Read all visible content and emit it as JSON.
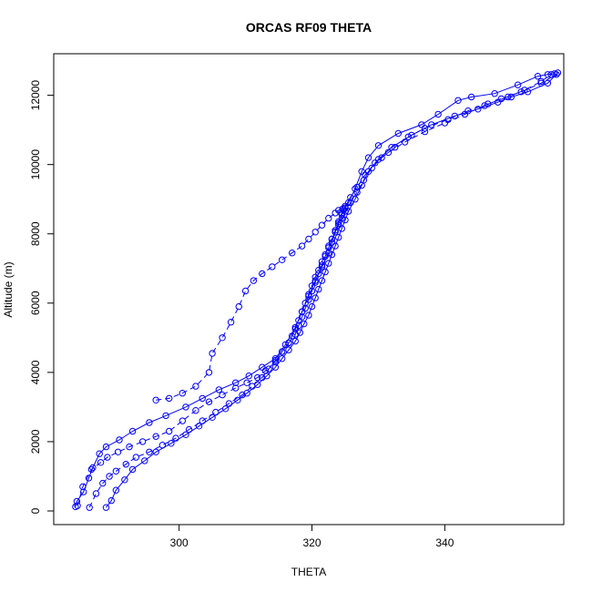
{
  "chart_data": {
    "type": "scatter",
    "title": "ORCAS RF09 THETA",
    "xlabel": "THETA",
    "ylabel": "Altitude (m)",
    "xlim": [
      284,
      357.5
    ],
    "ylim": [
      0,
      12700
    ],
    "x_ticks": [
      300,
      320,
      340,
      360
    ],
    "y_ticks": [
      0,
      2000,
      4000,
      6000,
      8000,
      10000,
      12000
    ],
    "grid": false,
    "legend": "none",
    "series_color": "#0000FF",
    "series": [
      {
        "line": "solid",
        "x": [
          284.4,
          284.6,
          285.6,
          286.4,
          287.0,
          288.0,
          289.0,
          291.0,
          293.0,
          295.5,
          298.0,
          301.0,
          303.5,
          306.0,
          308.5,
          310.5,
          312.5,
          314.5,
          316.0,
          317.5,
          318.5,
          319.5,
          320.5,
          321.5,
          322.5,
          323.0,
          323.5,
          324.0,
          324.5,
          324.8,
          325.0,
          325.5,
          326.5,
          327.5,
          328.5,
          330.0,
          333.0,
          336.5,
          339.0,
          342.0,
          344.0,
          347.5,
          351.0,
          354.0,
          355.5,
          356.5
        ],
        "y": [
          120,
          280,
          550,
          950,
          1250,
          1650,
          1850,
          2050,
          2300,
          2550,
          2750,
          3000,
          3250,
          3500,
          3700,
          3900,
          4150,
          4400,
          4800,
          5300,
          5750,
          6200,
          6650,
          7050,
          7450,
          7750,
          8050,
          8300,
          8550,
          8700,
          8750,
          8900,
          9300,
          9800,
          10200,
          10550,
          10900,
          11150,
          11450,
          11850,
          11950,
          12050,
          12300,
          12550,
          12600,
          12620
        ]
      },
      {
        "line": "dashed",
        "x": [
          284.7,
          285.5,
          286.8,
          288.2,
          289.2,
          290.8,
          292.5,
          294.5,
          296.5,
          298.5,
          300.5,
          302.5,
          304.5,
          306.5,
          308.5,
          310.2,
          311.8,
          313.0,
          314.5,
          315.5,
          316.5,
          317.0,
          317.5,
          318.0,
          318.5,
          319.0,
          319.5,
          320.0,
          320.5,
          321.0,
          321.5,
          322.0,
          322.5,
          323.0,
          323.5,
          324.0,
          324.5,
          325.0,
          325.8,
          326.8,
          327.8,
          329.0,
          330.5,
          332.5,
          334.5,
          337.0,
          340.5,
          343.5,
          346.5,
          349.5,
          352.0,
          354.5,
          356.0
        ],
        "y": [
          150,
          700,
          1200,
          1400,
          1550,
          1700,
          1850,
          2000,
          2150,
          2300,
          2600,
          2900,
          3150,
          3350,
          3550,
          3700,
          3850,
          4050,
          4300,
          4600,
          4850,
          5050,
          5250,
          5500,
          5750,
          6000,
          6250,
          6500,
          6750,
          6950,
          7200,
          7400,
          7650,
          7850,
          8050,
          8250,
          8450,
          8650,
          8900,
          9200,
          9550,
          9900,
          10200,
          10500,
          10800,
          11050,
          11300,
          11550,
          11750,
          11950,
          12150,
          12400,
          12600
        ]
      },
      {
        "line": "dashed",
        "x": [
          286.5,
          287.5,
          288.5,
          289.5,
          290.5,
          292.0,
          293.5,
          295.5,
          297.5,
          299.5,
          301.5,
          303.5,
          305.5,
          307.5,
          309.5,
          311.0,
          312.5,
          313.5,
          314.5,
          315.5,
          316.5,
          317.5,
          318.0,
          318.5,
          319.0,
          319.5,
          320.0,
          320.5,
          321.0,
          321.5,
          322.0,
          322.5,
          323.0,
          323.5,
          324.0,
          324.5,
          325.0,
          325.8,
          326.8,
          328.0,
          329.5,
          331.5,
          334.0,
          337.0,
          340.0,
          343.0,
          346.0,
          348.5,
          351.5,
          354.5,
          356.8
        ],
        "y": [
          100,
          500,
          800,
          1000,
          1150,
          1350,
          1550,
          1700,
          1900,
          2100,
          2350,
          2600,
          2850,
          3100,
          3350,
          3600,
          3850,
          4100,
          4350,
          4600,
          4850,
          5100,
          5350,
          5600,
          5850,
          6100,
          6350,
          6600,
          6850,
          7100,
          7350,
          7600,
          7850,
          8100,
          8350,
          8600,
          8800,
          9050,
          9350,
          9700,
          10050,
          10350,
          10650,
          10950,
          11200,
          11450,
          11700,
          11900,
          12100,
          12350,
          12600
        ]
      },
      {
        "line": "solid",
        "x": [
          289.0,
          289.8,
          290.5,
          291.8,
          293.0,
          294.8,
          296.5,
          298.8,
          301.0,
          303.0,
          305.0,
          307.0,
          308.8,
          310.2,
          311.8,
          313.2,
          314.5,
          315.5,
          316.5,
          317.5,
          318.2,
          318.8,
          319.5,
          320.0,
          320.5,
          321.0,
          321.5,
          322.0,
          322.5,
          323.0,
          323.5,
          324.0,
          324.5,
          325.0,
          325.5,
          326.5,
          327.5,
          328.5,
          330.0,
          332.0,
          335.0,
          338.0,
          341.5,
          345.0,
          348.0,
          350.0,
          352.5,
          355.5,
          357.0
        ],
        "y": [
          100,
          300,
          600,
          900,
          1200,
          1450,
          1700,
          1950,
          2200,
          2450,
          2700,
          2950,
          3200,
          3400,
          3650,
          3900,
          4150,
          4400,
          4650,
          4900,
          5150,
          5400,
          5650,
          5900,
          6150,
          6400,
          6650,
          6900,
          7150,
          7400,
          7650,
          7900,
          8150,
          8400,
          8650,
          9000,
          9400,
          9800,
          10150,
          10500,
          10850,
          11150,
          11400,
          11600,
          11800,
          11950,
          12100,
          12350,
          12650
        ]
      },
      {
        "line": "dashed",
        "x": [
          296.5,
          298.5,
          300.5,
          302.5,
          304.5,
          305.0,
          306.5,
          307.8,
          309.0,
          310.0,
          311.2,
          312.5,
          314.0,
          315.5,
          317.0,
          318.5,
          319.5,
          320.5,
          321.5,
          322.5,
          323.5,
          324.0,
          324.6,
          325.0
        ],
        "y": [
          3200,
          3250,
          3400,
          3600,
          4000,
          4550,
          5000,
          5450,
          5900,
          6350,
          6650,
          6850,
          7050,
          7250,
          7450,
          7650,
          7850,
          8050,
          8250,
          8450,
          8600,
          8680,
          8720,
          8750
        ]
      }
    ]
  }
}
